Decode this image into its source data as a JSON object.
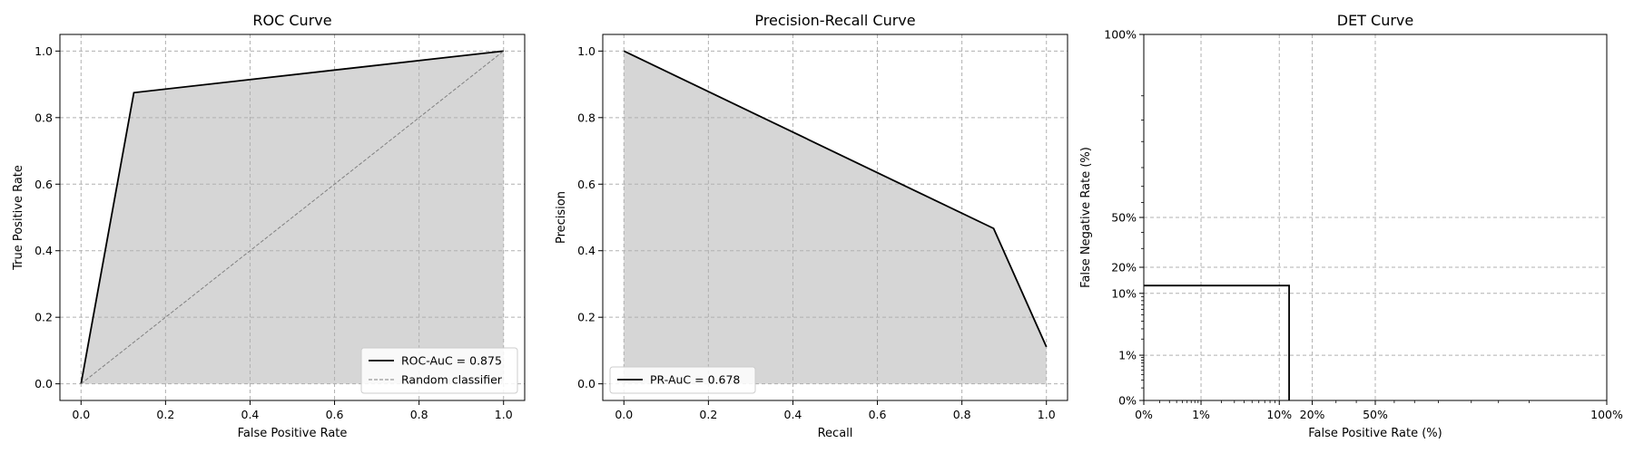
{
  "colors": {
    "fill": "#d6d6d6",
    "line": "#000000",
    "grid": "#b0b0b0",
    "random": "#808080"
  },
  "chart_data": [
    {
      "type": "area",
      "title": "ROC Curve",
      "xlabel": "False Positive Rate",
      "ylabel": "True Positive Rate",
      "xlim": [
        -0.05,
        1.05
      ],
      "ylim": [
        -0.05,
        1.05
      ],
      "xticks": [
        0.0,
        0.2,
        0.4,
        0.6,
        0.8,
        1.0
      ],
      "yticks": [
        0.0,
        0.2,
        0.4,
        0.6,
        0.8,
        1.0
      ],
      "xtick_labels": [
        "0.0",
        "0.2",
        "0.4",
        "0.6",
        "0.8",
        "1.0"
      ],
      "ytick_labels": [
        "0.0",
        "0.2",
        "0.4",
        "0.6",
        "0.8",
        "1.0"
      ],
      "grid": true,
      "legend_placement": "lower-right",
      "series": [
        {
          "name": "ROC-AuC = 0.875",
          "style": "solid",
          "filled": true,
          "x": [
            0.0,
            0.125,
            1.0
          ],
          "y": [
            0.0,
            0.875,
            1.0
          ]
        },
        {
          "name": "Random classifier",
          "style": "dashed",
          "filled": false,
          "x": [
            0.0,
            1.0
          ],
          "y": [
            0.0,
            1.0
          ]
        }
      ]
    },
    {
      "type": "area",
      "title": "Precision-Recall Curve",
      "xlabel": "Recall",
      "ylabel": "Precision",
      "xlim": [
        -0.05,
        1.05
      ],
      "ylim": [
        -0.05,
        1.05
      ],
      "xticks": [
        0.0,
        0.2,
        0.4,
        0.6,
        0.8,
        1.0
      ],
      "yticks": [
        0.0,
        0.2,
        0.4,
        0.6,
        0.8,
        1.0
      ],
      "xtick_labels": [
        "0.0",
        "0.2",
        "0.4",
        "0.6",
        "0.8",
        "1.0"
      ],
      "ytick_labels": [
        "0.0",
        "0.2",
        "0.4",
        "0.6",
        "0.8",
        "1.0"
      ],
      "grid": true,
      "legend_placement": "lower-left",
      "series": [
        {
          "name": "PR-AuC = 0.678",
          "style": "solid",
          "filled": true,
          "x": [
            0.0,
            0.875,
            1.0
          ],
          "y": [
            1.0,
            0.467,
            0.111
          ]
        }
      ]
    },
    {
      "type": "line",
      "title": "DET Curve",
      "xlabel": "False Positive Rate (%)",
      "ylabel": "False Negative Rate (%)",
      "scale": "normal-deviate (probit)",
      "xlim": [
        0.0,
        1.0
      ],
      "ylim": [
        0.0,
        1.0
      ],
      "xticks": [
        0.0,
        0.01,
        0.1,
        0.2,
        0.5,
        1.0
      ],
      "yticks": [
        0.0,
        0.01,
        0.1,
        0.2,
        0.5,
        1.0
      ],
      "xtick_labels": [
        "0%",
        "1%",
        "10%",
        "20%",
        "50%",
        "100%"
      ],
      "ytick_labels": [
        "0%",
        "1%",
        "10%",
        "20%",
        "50%",
        "100%"
      ],
      "grid": true,
      "series": [
        {
          "style": "solid",
          "x": [
            0.0,
            0.125,
            0.125
          ],
          "y": [
            0.125,
            0.125,
            0.0
          ]
        }
      ]
    }
  ]
}
